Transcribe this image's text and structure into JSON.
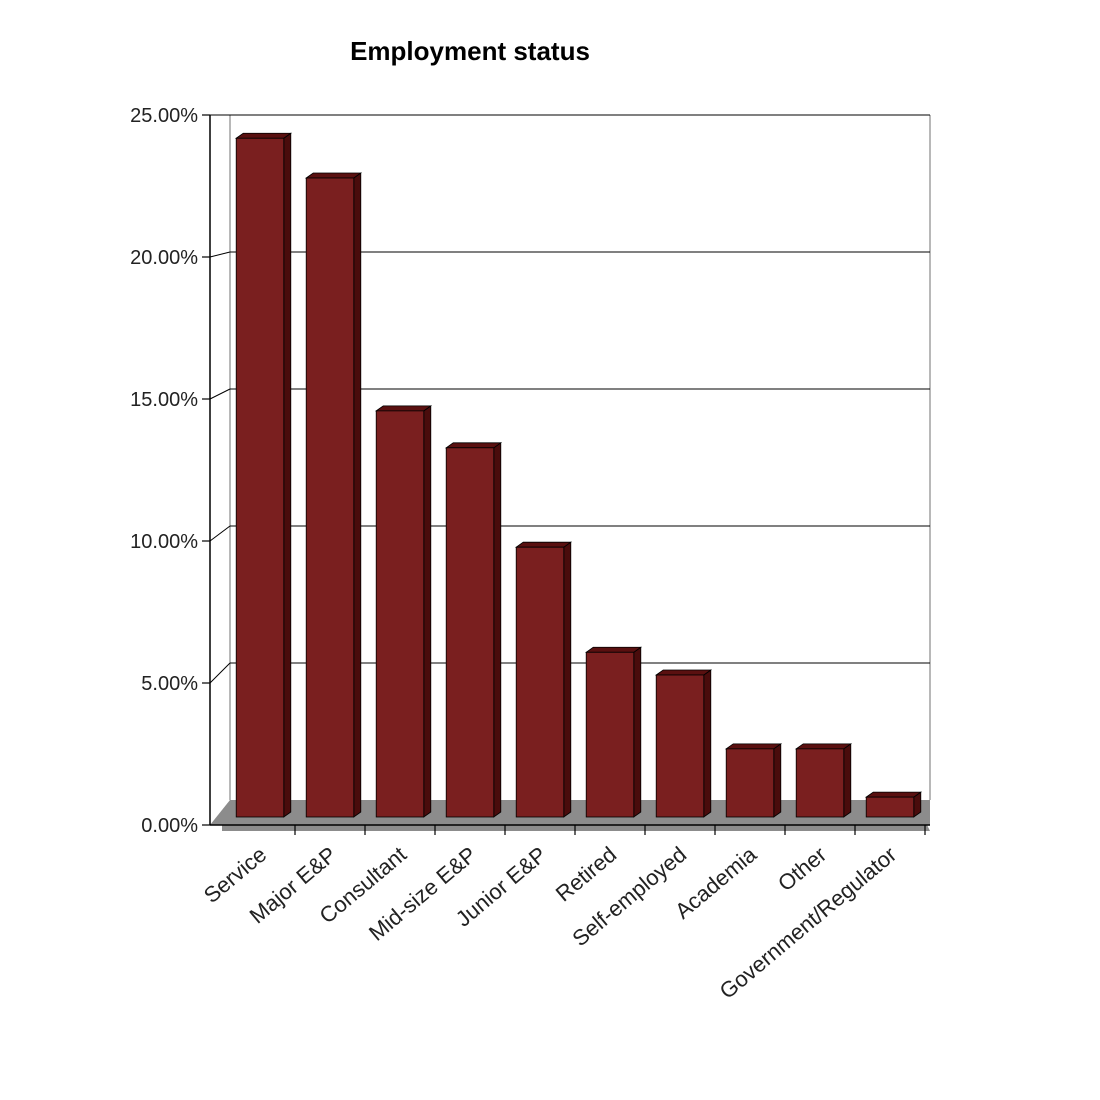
{
  "chart_data": {
    "type": "bar",
    "title": "Employment status",
    "xlabel": "",
    "ylabel": "",
    "categories": [
      "Service",
      "Major E&P",
      "Consultant",
      "Mid-size E&P",
      "Junior E&P",
      "Retired",
      "Self-employed",
      "Academia",
      "Other",
      "Government/Regulator"
    ],
    "values": [
      23.9,
      22.5,
      14.3,
      13.0,
      9.5,
      5.8,
      5.0,
      2.4,
      2.4,
      0.7
    ],
    "ylim": [
      0,
      25
    ],
    "yticks": [
      "0.00%",
      "5.00%",
      "10.00%",
      "15.00%",
      "20.00%",
      "25.00%"
    ],
    "grid": true,
    "style": "3d-column",
    "colors": {
      "bar_front": "#7a1f1f",
      "bar_top": "#5a1010",
      "bar_side": "#4a0c0c",
      "floor": "#8c8c8c",
      "gridline": "#000000"
    }
  }
}
